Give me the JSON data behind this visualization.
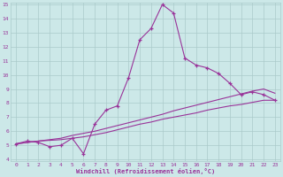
{
  "xlabel": "Windchill (Refroidissement éolien,°C)",
  "bg_color": "#cce8e8",
  "grid_color": "#aacaca",
  "line_color": "#993399",
  "x_hours": [
    0,
    1,
    2,
    3,
    4,
    5,
    6,
    7,
    8,
    9,
    10,
    11,
    12,
    13,
    14,
    15,
    16,
    17,
    18,
    19,
    20,
    21,
    22,
    23
  ],
  "y_main": [
    5.1,
    5.3,
    5.2,
    4.9,
    5.0,
    5.5,
    4.4,
    6.5,
    7.5,
    7.8,
    9.8,
    12.5,
    13.3,
    15.0,
    14.4,
    11.2,
    10.7,
    10.5,
    10.1,
    9.4,
    8.6,
    8.8,
    8.6,
    8.2
  ],
  "y_refA": [
    5.1,
    5.2,
    5.3,
    5.35,
    5.4,
    5.5,
    5.6,
    5.75,
    5.9,
    6.1,
    6.3,
    6.5,
    6.65,
    6.85,
    7.0,
    7.15,
    7.3,
    7.5,
    7.65,
    7.8,
    7.9,
    8.05,
    8.2,
    8.2
  ],
  "y_refB": [
    5.1,
    5.2,
    5.3,
    5.4,
    5.5,
    5.7,
    5.85,
    6.0,
    6.2,
    6.4,
    6.6,
    6.8,
    7.0,
    7.2,
    7.45,
    7.65,
    7.85,
    8.05,
    8.25,
    8.45,
    8.65,
    8.85,
    9.0,
    8.7
  ],
  "ylim": [
    4,
    15
  ],
  "xlim": [
    -0.5,
    23.5
  ],
  "yticks": [
    4,
    5,
    6,
    7,
    8,
    9,
    10,
    11,
    12,
    13,
    14,
    15
  ],
  "xticks": [
    0,
    1,
    2,
    3,
    4,
    5,
    6,
    7,
    8,
    9,
    10,
    11,
    12,
    13,
    14,
    15,
    16,
    17,
    18,
    19,
    20,
    21,
    22,
    23
  ]
}
